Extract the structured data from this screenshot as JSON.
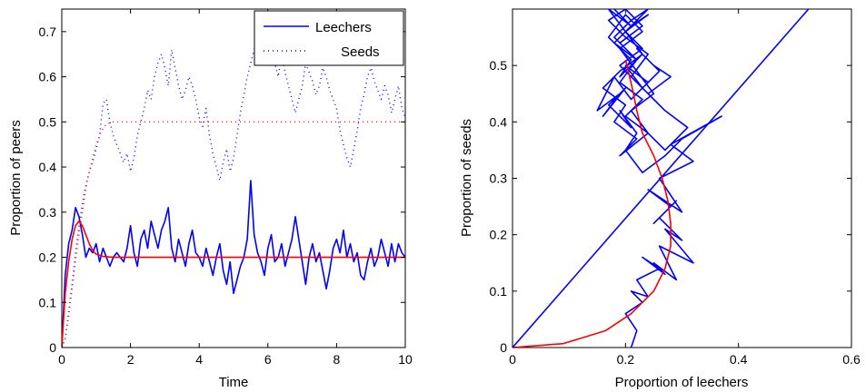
{
  "colors": {
    "blue": "#0000ff",
    "red": "#ff0000",
    "axis": "#000000",
    "background": "#ffffff"
  },
  "chart_data": [
    {
      "type": "line",
      "xlabel": "Time",
      "ylabel": "Proportion of peers",
      "xlim": [
        0,
        10
      ],
      "ylim": [
        0,
        0.75
      ],
      "xticks": [
        0,
        2,
        4,
        6,
        8,
        10
      ],
      "xtick_labels": [
        "0",
        "2",
        "4",
        "6",
        "8",
        "10"
      ],
      "yticks": [
        0,
        0.1,
        0.2,
        0.3,
        0.4,
        0.5,
        0.6,
        0.7
      ],
      "ytick_labels": [
        "0",
        "0.1",
        "0.2",
        "0.3",
        "0.4",
        "0.5",
        "0.6",
        "0.7"
      ],
      "grid": false,
      "legend": {
        "position": "top-right",
        "entries": [
          {
            "label": "Leechers",
            "color": "#0000ff",
            "style": "solid"
          },
          {
            "label": "Seeds",
            "color": "#0000ff",
            "style": "dotted"
          }
        ]
      },
      "series": [
        {
          "name": "Leechers",
          "color": "#0000ff",
          "style": "solid",
          "x": [
            0,
            0.1,
            0.2,
            0.3,
            0.4,
            0.5,
            0.6,
            0.7,
            0.8,
            0.9,
            1.0,
            1.1,
            1.2,
            1.3,
            1.4,
            1.5,
            1.6,
            1.7,
            1.8,
            1.9,
            2.0,
            2.1,
            2.2,
            2.3,
            2.4,
            2.5,
            2.6,
            2.7,
            2.8,
            2.9,
            3.0,
            3.1,
            3.2,
            3.3,
            3.4,
            3.5,
            3.6,
            3.7,
            3.8,
            3.9,
            4.0,
            4.1,
            4.2,
            4.3,
            4.4,
            4.5,
            4.6,
            4.7,
            4.8,
            4.9,
            5.0,
            5.1,
            5.2,
            5.3,
            5.4,
            5.5,
            5.6,
            5.7,
            5.8,
            5.9,
            6.0,
            6.1,
            6.2,
            6.3,
            6.4,
            6.5,
            6.6,
            6.7,
            6.8,
            6.9,
            7.0,
            7.1,
            7.2,
            7.3,
            7.4,
            7.5,
            7.6,
            7.7,
            7.8,
            7.9,
            8.0,
            8.1,
            8.2,
            8.3,
            8.4,
            8.5,
            8.6,
            8.7,
            8.8,
            8.9,
            9.0,
            9.1,
            9.2,
            9.3,
            9.4,
            9.5,
            9.6,
            9.7,
            9.8,
            9.9,
            10.0
          ],
          "y": [
            0.0,
            0.16,
            0.23,
            0.26,
            0.31,
            0.29,
            0.25,
            0.2,
            0.22,
            0.21,
            0.23,
            0.19,
            0.22,
            0.2,
            0.18,
            0.2,
            0.21,
            0.2,
            0.19,
            0.22,
            0.27,
            0.21,
            0.18,
            0.24,
            0.26,
            0.22,
            0.28,
            0.25,
            0.22,
            0.26,
            0.28,
            0.31,
            0.22,
            0.19,
            0.24,
            0.21,
            0.18,
            0.23,
            0.26,
            0.21,
            0.2,
            0.18,
            0.22,
            0.19,
            0.16,
            0.2,
            0.23,
            0.17,
            0.14,
            0.19,
            0.12,
            0.15,
            0.18,
            0.2,
            0.24,
            0.37,
            0.25,
            0.21,
            0.19,
            0.16,
            0.22,
            0.25,
            0.19,
            0.2,
            0.23,
            0.18,
            0.21,
            0.24,
            0.29,
            0.24,
            0.19,
            0.14,
            0.2,
            0.23,
            0.19,
            0.21,
            0.17,
            0.13,
            0.17,
            0.22,
            0.24,
            0.21,
            0.26,
            0.2,
            0.23,
            0.19,
            0.21,
            0.16,
            0.15,
            0.19,
            0.22,
            0.18,
            0.2,
            0.24,
            0.21,
            0.18,
            0.23,
            0.19,
            0.23,
            0.21,
            0.2
          ]
        },
        {
          "name": "Seeds",
          "color": "#0000ff",
          "style": "dotted",
          "x": [
            0,
            0.1,
            0.2,
            0.3,
            0.4,
            0.5,
            0.6,
            0.7,
            0.8,
            0.9,
            1.0,
            1.1,
            1.2,
            1.3,
            1.4,
            1.5,
            1.6,
            1.7,
            1.8,
            1.9,
            2.0,
            2.1,
            2.2,
            2.3,
            2.4,
            2.5,
            2.6,
            2.7,
            2.8,
            2.9,
            3.0,
            3.1,
            3.2,
            3.3,
            3.4,
            3.5,
            3.6,
            3.7,
            3.8,
            3.9,
            4.0,
            4.1,
            4.2,
            4.3,
            4.4,
            4.5,
            4.6,
            4.7,
            4.8,
            4.9,
            5.0,
            5.1,
            5.2,
            5.3,
            5.4,
            5.5,
            5.6,
            5.7,
            5.8,
            5.9,
            6.0,
            6.1,
            6.2,
            6.3,
            6.4,
            6.5,
            6.6,
            6.7,
            6.8,
            6.9,
            7.0,
            7.1,
            7.2,
            7.3,
            7.4,
            7.5,
            7.6,
            7.7,
            7.8,
            7.9,
            8.0,
            8.1,
            8.2,
            8.3,
            8.4,
            8.5,
            8.6,
            8.7,
            8.8,
            8.9,
            9.0,
            9.1,
            9.2,
            9.3,
            9.4,
            9.5,
            9.6,
            9.7,
            9.8,
            9.9,
            10.0
          ],
          "y": [
            0.0,
            0.02,
            0.08,
            0.14,
            0.21,
            0.27,
            0.32,
            0.36,
            0.39,
            0.41,
            0.44,
            0.47,
            0.54,
            0.55,
            0.5,
            0.47,
            0.45,
            0.43,
            0.41,
            0.43,
            0.39,
            0.42,
            0.47,
            0.5,
            0.53,
            0.57,
            0.55,
            0.6,
            0.63,
            0.65,
            0.62,
            0.58,
            0.66,
            0.62,
            0.58,
            0.55,
            0.57,
            0.6,
            0.58,
            0.55,
            0.51,
            0.49,
            0.53,
            0.47,
            0.43,
            0.4,
            0.37,
            0.41,
            0.44,
            0.39,
            0.42,
            0.47,
            0.52,
            0.56,
            0.6,
            0.63,
            0.66,
            0.68,
            0.71,
            0.74,
            0.7,
            0.66,
            0.63,
            0.6,
            0.65,
            0.61,
            0.58,
            0.55,
            0.52,
            0.55,
            0.58,
            0.63,
            0.61,
            0.59,
            0.56,
            0.58,
            0.62,
            0.6,
            0.57,
            0.55,
            0.53,
            0.48,
            0.45,
            0.42,
            0.4,
            0.44,
            0.48,
            0.53,
            0.56,
            0.6,
            0.62,
            0.59,
            0.57,
            0.55,
            0.58,
            0.56,
            0.52,
            0.55,
            0.58,
            0.53,
            0.51
          ]
        },
        {
          "color": "#ff0000",
          "style": "solid",
          "x": [
            0,
            0.05,
            0.1,
            0.2,
            0.3,
            0.4,
            0.5,
            0.6,
            0.7,
            0.8,
            0.9,
            1.0,
            1.2,
            1.5,
            2.0,
            3.0,
            4.0,
            5.0,
            6.0,
            7.0,
            8.0,
            9.0,
            10.0
          ],
          "y": [
            0.0,
            0.06,
            0.12,
            0.19,
            0.24,
            0.27,
            0.28,
            0.27,
            0.25,
            0.23,
            0.215,
            0.207,
            0.202,
            0.2,
            0.2,
            0.2,
            0.2,
            0.2,
            0.2,
            0.2,
            0.2,
            0.2,
            0.2
          ]
        },
        {
          "color": "#ff0000",
          "style": "dotted",
          "x": [
            0,
            0.1,
            0.2,
            0.3,
            0.4,
            0.5,
            0.6,
            0.7,
            0.8,
            0.9,
            1.0,
            1.1,
            1.2,
            1.3,
            1.5,
            2.0,
            3.0,
            4.0,
            5.0,
            6.0,
            7.0,
            8.0,
            9.0,
            10.0
          ],
          "y": [
            0.0,
            0.02,
            0.07,
            0.13,
            0.19,
            0.25,
            0.3,
            0.35,
            0.39,
            0.42,
            0.45,
            0.47,
            0.485,
            0.495,
            0.5,
            0.5,
            0.5,
            0.5,
            0.5,
            0.5,
            0.5,
            0.5,
            0.5,
            0.5
          ]
        }
      ]
    },
    {
      "type": "line",
      "xlabel": "Proportion of leechers",
      "ylabel": "Proportion of seeds",
      "xlim": [
        0,
        0.6
      ],
      "ylim": [
        0,
        0.6
      ],
      "xticks": [
        0,
        0.2,
        0.4,
        0.6
      ],
      "xtick_labels": [
        "0",
        "0.2",
        "0.4",
        "0.6"
      ],
      "yticks": [
        0,
        0.1,
        0.2,
        0.3,
        0.4,
        0.5
      ],
      "ytick_labels": [
        "0",
        "0.1",
        "0.2",
        "0.3",
        "0.4",
        "0.5"
      ],
      "grid": false,
      "series": [
        {
          "color": "#0000ff",
          "style": "solid",
          "x": [
            0,
            0.524
          ],
          "y": [
            0,
            0.6
          ]
        },
        {
          "color": "#0000ff",
          "style": "solid",
          "x": [
            0.21,
            0.22,
            0.2,
            0.23,
            0.21,
            0.24,
            0.22,
            0.26,
            0.23,
            0.27,
            0.25,
            0.29,
            0.26,
            0.32,
            0.27,
            0.3,
            0.26,
            0.29,
            0.25,
            0.28,
            0.24,
            0.3,
            0.26,
            0.32,
            0.28,
            0.37,
            0.3,
            0.27,
            0.23,
            0.2,
            0.22,
            0.19,
            0.21,
            0.17,
            0.2,
            0.16,
            0.19,
            0.15,
            0.18,
            0.21,
            0.24,
            0.2,
            0.23,
            0.26,
            0.22,
            0.25,
            0.28,
            0.24,
            0.27,
            0.31,
            0.27,
            0.24,
            0.2,
            0.23,
            0.19,
            0.22,
            0.18,
            0.21,
            0.17,
            0.2,
            0.23,
            0.19,
            0.22,
            0.25,
            0.21,
            0.24,
            0.2,
            0.17,
            0.2,
            0.23,
            0.19,
            0.22,
            0.18,
            0.21,
            0.24,
            0.2,
            0.23,
            0.19,
            0.16,
            0.2,
            0.18,
            0.22,
            0.19,
            0.24,
            0.21,
            0.25,
            0.22,
            0.19,
            0.23,
            0.2,
            0.17,
            0.21,
            0.19,
            0.23,
            0.2,
            0.24,
            0.21,
            0.18
          ],
          "y": [
            0.0,
            0.03,
            0.06,
            0.08,
            0.1,
            0.09,
            0.12,
            0.14,
            0.16,
            0.13,
            0.15,
            0.12,
            0.18,
            0.15,
            0.21,
            0.19,
            0.23,
            0.26,
            0.22,
            0.25,
            0.28,
            0.24,
            0.3,
            0.33,
            0.36,
            0.41,
            0.37,
            0.34,
            0.31,
            0.35,
            0.38,
            0.42,
            0.39,
            0.43,
            0.46,
            0.41,
            0.45,
            0.42,
            0.48,
            0.44,
            0.47,
            0.5,
            0.46,
            0.49,
            0.53,
            0.5,
            0.48,
            0.45,
            0.42,
            0.39,
            0.35,
            0.38,
            0.41,
            0.44,
            0.47,
            0.51,
            0.54,
            0.57,
            0.6,
            0.56,
            0.53,
            0.5,
            0.47,
            0.44,
            0.48,
            0.52,
            0.55,
            0.58,
            0.6,
            0.57,
            0.54,
            0.51,
            0.55,
            0.58,
            0.6,
            0.56,
            0.52,
            0.49,
            0.46,
            0.43,
            0.4,
            0.37,
            0.34,
            0.38,
            0.42,
            0.45,
            0.49,
            0.53,
            0.56,
            0.59,
            0.55,
            0.51,
            0.48,
            0.52,
            0.56,
            0.59,
            0.57,
            0.6
          ]
        },
        {
          "color": "#ff0000",
          "style": "solid",
          "x": [
            0,
            0.09,
            0.165,
            0.21,
            0.25,
            0.27,
            0.28,
            0.28,
            0.275,
            0.265,
            0.25,
            0.23,
            0.22,
            0.212,
            0.205,
            0.2
          ],
          "y": [
            0,
            0.007,
            0.03,
            0.06,
            0.1,
            0.14,
            0.18,
            0.22,
            0.26,
            0.3,
            0.34,
            0.38,
            0.42,
            0.46,
            0.49,
            0.51
          ]
        }
      ]
    }
  ]
}
